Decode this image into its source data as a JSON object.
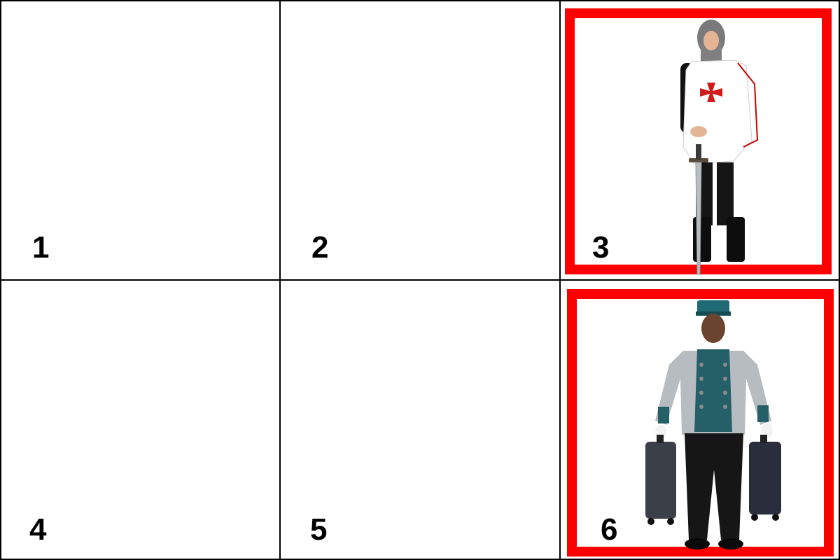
{
  "cells": [
    {
      "number": "1",
      "image": null
    },
    {
      "number": "2",
      "image": null
    },
    {
      "number": "3",
      "image": "knight-costume-icon"
    },
    {
      "number": "4",
      "image": null
    },
    {
      "number": "5",
      "image": null
    },
    {
      "number": "6",
      "image": "bellhop-costume-icon"
    }
  ],
  "colors": {
    "grid_lines": "#000000",
    "highlight_frame": "#ff0000",
    "background": "#ffffff"
  }
}
